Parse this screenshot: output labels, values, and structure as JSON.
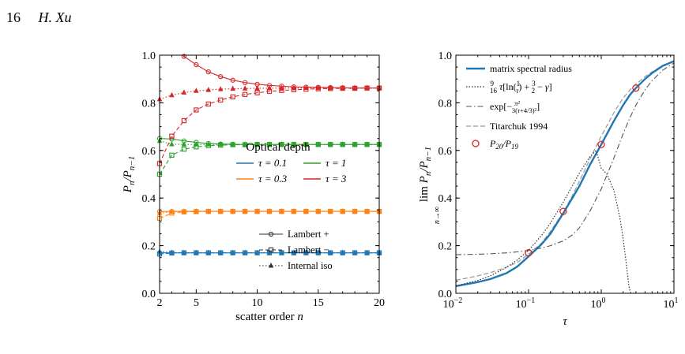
{
  "header": {
    "page_number": "16",
    "author": "H. Xu"
  },
  "colors": {
    "tau_0.1": "#1f77b4",
    "tau_0.3": "#ff7f0e",
    "tau_1": "#2ca02c",
    "tau_3": "#d62728",
    "spectral": "#1f77b4",
    "series_grey": "#555555",
    "titarchuk": "#999999",
    "ratio_marker": "#d62728"
  },
  "chart_data": [
    {
      "type": "line",
      "xlabel": "scatter order n",
      "ylabel": "P_n / P_{n-1}",
      "xlim": [
        2,
        20
      ],
      "ylim": [
        0.0,
        1.0
      ],
      "xticks": [
        2,
        5,
        10,
        15,
        20
      ],
      "yticks": [
        0.0,
        0.2,
        0.4,
        0.6,
        0.8,
        1.0
      ],
      "legend_color": {
        "title": "Optical depth",
        "placement": "center-right",
        "entries": [
          {
            "label": "τ = 0.1",
            "key": "tau_0.1"
          },
          {
            "label": "τ = 1",
            "key": "tau_1"
          },
          {
            "label": "τ = 0.3",
            "key": "tau_0.3"
          },
          {
            "label": "τ = 3",
            "key": "tau_3"
          }
        ]
      },
      "legend_style": {
        "placement": "lower-right",
        "entries": [
          {
            "label": "Lambert +",
            "style": "solid",
            "marker": "circle"
          },
          {
            "label": "Lambert −",
            "style": "dashed",
            "marker": "square"
          },
          {
            "label": "Internal iso",
            "style": "dotted",
            "marker": "triangle"
          }
        ]
      },
      "x": [
        2,
        3,
        4,
        5,
        6,
        7,
        8,
        9,
        10,
        11,
        12,
        13,
        14,
        15,
        16,
        17,
        18,
        19,
        20
      ],
      "series": [
        {
          "tau": "tau_0.1",
          "style": "solid",
          "marker": "circle",
          "values": [
            0.17,
            0.17,
            0.17,
            0.17,
            0.17,
            0.17,
            0.17,
            0.17,
            0.17,
            0.17,
            0.17,
            0.17,
            0.17,
            0.17,
            0.17,
            0.17,
            0.17,
            0.17,
            0.17
          ]
        },
        {
          "tau": "tau_0.1",
          "style": "dashed",
          "marker": "square",
          "values": [
            0.165,
            0.169,
            0.17,
            0.17,
            0.17,
            0.17,
            0.17,
            0.17,
            0.17,
            0.17,
            0.17,
            0.17,
            0.17,
            0.17,
            0.17,
            0.17,
            0.17,
            0.17,
            0.17
          ]
        },
        {
          "tau": "tau_0.1",
          "style": "dotted",
          "marker": "triangle",
          "values": [
            0.175,
            0.171,
            0.17,
            0.17,
            0.17,
            0.17,
            0.17,
            0.17,
            0.17,
            0.17,
            0.17,
            0.17,
            0.17,
            0.17,
            0.17,
            0.17,
            0.17,
            0.17,
            0.17
          ]
        },
        {
          "tau": "tau_0.3",
          "style": "solid",
          "marker": "circle",
          "values": [
            0.343,
            0.344,
            0.344,
            0.344,
            0.344,
            0.344,
            0.344,
            0.344,
            0.344,
            0.344,
            0.344,
            0.344,
            0.344,
            0.344,
            0.344,
            0.344,
            0.344,
            0.344,
            0.344
          ]
        },
        {
          "tau": "tau_0.3",
          "style": "dashed",
          "marker": "square",
          "values": [
            0.315,
            0.337,
            0.342,
            0.343,
            0.344,
            0.344,
            0.344,
            0.344,
            0.344,
            0.344,
            0.344,
            0.344,
            0.344,
            0.344,
            0.344,
            0.344,
            0.344,
            0.344,
            0.344
          ]
        },
        {
          "tau": "tau_0.3",
          "style": "dotted",
          "marker": "triangle",
          "values": [
            0.337,
            0.342,
            0.343,
            0.344,
            0.344,
            0.344,
            0.344,
            0.344,
            0.344,
            0.344,
            0.344,
            0.344,
            0.344,
            0.344,
            0.344,
            0.344,
            0.344,
            0.344,
            0.344
          ]
        },
        {
          "tau": "tau_1",
          "style": "solid",
          "marker": "circle",
          "values": [
            0.65,
            0.648,
            0.64,
            0.634,
            0.629,
            0.627,
            0.626,
            0.625,
            0.625,
            0.625,
            0.625,
            0.625,
            0.625,
            0.625,
            0.625,
            0.625,
            0.625,
            0.625,
            0.625
          ]
        },
        {
          "tau": "tau_1",
          "style": "dashed",
          "marker": "square",
          "values": [
            0.5,
            0.58,
            0.605,
            0.615,
            0.62,
            0.622,
            0.624,
            0.624,
            0.625,
            0.625,
            0.625,
            0.625,
            0.625,
            0.625,
            0.625,
            0.625,
            0.625,
            0.625,
            0.625
          ]
        },
        {
          "tau": "tau_1",
          "style": "dotted",
          "marker": "triangle",
          "values": [
            0.64,
            0.626,
            0.625,
            0.625,
            0.625,
            0.625,
            0.625,
            0.625,
            0.625,
            0.625,
            0.625,
            0.625,
            0.625,
            0.625,
            0.625,
            0.625,
            0.625,
            0.625,
            0.625
          ]
        },
        {
          "tau": "tau_3",
          "style": "solid",
          "marker": "circle",
          "values": [
            null,
            null,
            0.995,
            0.96,
            0.93,
            0.91,
            0.895,
            0.885,
            0.878,
            0.873,
            0.87,
            0.867,
            0.866,
            0.865,
            0.864,
            0.863,
            0.862,
            0.862,
            0.862
          ]
        },
        {
          "tau": "tau_3",
          "style": "dashed",
          "marker": "square",
          "values": [
            0.545,
            0.66,
            0.725,
            0.77,
            0.795,
            0.812,
            0.825,
            0.835,
            0.842,
            0.848,
            0.852,
            0.855,
            0.857,
            0.859,
            0.86,
            0.861,
            0.861,
            0.862,
            0.862
          ]
        },
        {
          "tau": "tau_3",
          "style": "dotted",
          "marker": "triangle",
          "values": [
            0.815,
            0.832,
            0.843,
            0.85,
            0.854,
            0.857,
            0.859,
            0.86,
            0.861,
            0.861,
            0.862,
            0.862,
            0.862,
            0.862,
            0.862,
            0.862,
            0.862,
            0.862,
            0.862
          ]
        }
      ]
    },
    {
      "type": "line",
      "xlabel": "τ",
      "ylabel": "lim_{n→∞} P_n / P_{n-1}",
      "xscale": "log",
      "xlim": [
        0.01,
        10
      ],
      "ylim": [
        0.0,
        1.0
      ],
      "xticks": [
        0.01,
        0.1,
        1,
        10
      ],
      "xtick_labels": [
        "10",
        "10",
        "10",
        "10"
      ],
      "xtick_exponents": [
        "−2",
        "−1",
        "0",
        "1"
      ],
      "yticks": [
        0.0,
        0.2,
        0.4,
        0.6,
        0.8,
        1.0
      ],
      "legend": {
        "placement": "upper-left",
        "entries": [
          {
            "label": "matrix spectral radius",
            "style": "solid-thick"
          },
          {
            "label": "9/16 τ [ln(1/τ) + 3/2 − γ]",
            "style": "dotted"
          },
          {
            "label": "exp[− π² / 3(τ+4/3)²]",
            "style": "dashdot"
          },
          {
            "label": "Titarchuk 1994",
            "style": "dashed"
          },
          {
            "label": "P20/P19",
            "style": "marker"
          }
        ]
      },
      "x": [
        0.01,
        0.02,
        0.03,
        0.05,
        0.07,
        0.1,
        0.15,
        0.2,
        0.3,
        0.4,
        0.5,
        0.7,
        1,
        1.5,
        2,
        2.5,
        3,
        4,
        5,
        7,
        10
      ],
      "series": [
        {
          "name": "spectral",
          "values": [
            0.03,
            0.047,
            0.06,
            0.085,
            0.112,
            0.155,
            0.205,
            0.25,
            0.336,
            0.4,
            0.45,
            0.54,
            0.625,
            0.725,
            0.79,
            0.835,
            0.862,
            0.9,
            0.925,
            0.955,
            0.975
          ]
        },
        {
          "name": "titarchuk",
          "values": [
            0.055,
            0.073,
            0.087,
            0.11,
            0.13,
            0.165,
            0.21,
            0.26,
            0.34,
            0.41,
            0.47,
            0.565,
            0.66,
            0.76,
            0.82,
            0.855,
            0.878,
            0.91,
            0.93,
            0.957,
            0.975
          ]
        },
        {
          "name": "exp",
          "values": [
            0.162,
            0.164,
            0.166,
            0.17,
            0.174,
            0.18,
            0.19,
            0.2,
            0.22,
            0.245,
            0.275,
            0.345,
            0.438,
            0.57,
            0.67,
            0.74,
            0.79,
            0.855,
            0.893,
            0.937,
            0.967
          ]
        }
      ],
      "dotted_series": {
        "x": [
          0.01,
          0.02,
          0.03,
          0.05,
          0.07,
          0.1,
          0.15,
          0.2,
          0.3,
          0.4,
          0.5,
          0.7,
          0.85,
          1,
          1.2,
          1.5,
          1.8,
          2,
          2.2,
          2.4,
          2.55
        ],
        "values": [
          0.031,
          0.054,
          0.074,
          0.109,
          0.14,
          0.18,
          0.242,
          0.295,
          0.383,
          0.451,
          0.505,
          0.574,
          0.6,
          0.525,
          0.5,
          0.43,
          0.32,
          0.23,
          0.13,
          0.03,
          0.0
        ]
      },
      "ratio_markers": {
        "x": [
          0.1,
          0.3,
          1,
          3
        ],
        "values": [
          0.17,
          0.344,
          0.625,
          0.862
        ]
      }
    }
  ]
}
